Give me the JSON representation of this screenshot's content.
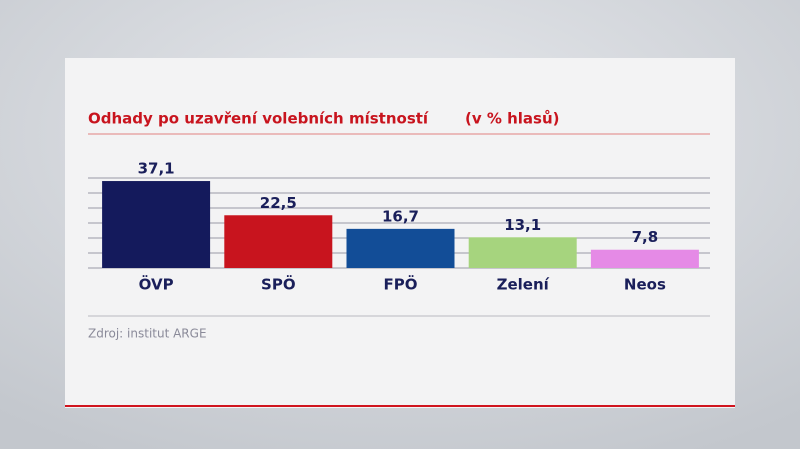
{
  "chart_data": {
    "type": "bar",
    "title": "Odhady po uzavření volebních místností",
    "subtitle": "(v % hlasů)",
    "source": "Zdroj: institut ARGE",
    "categories": [
      "ÖVP",
      "SPÖ",
      "FPÖ",
      "Zelení",
      "Neos"
    ],
    "values": [
      37.1,
      22.5,
      16.7,
      13.1,
      7.8
    ],
    "value_labels": [
      "37,1",
      "22,5",
      "16,7",
      "13,1",
      "7,8"
    ],
    "colors": [
      "#141a5c",
      "#c8141e",
      "#124d97",
      "#a6d47e",
      "#e58ae6"
    ],
    "ylim": [
      0,
      38.4
    ]
  }
}
